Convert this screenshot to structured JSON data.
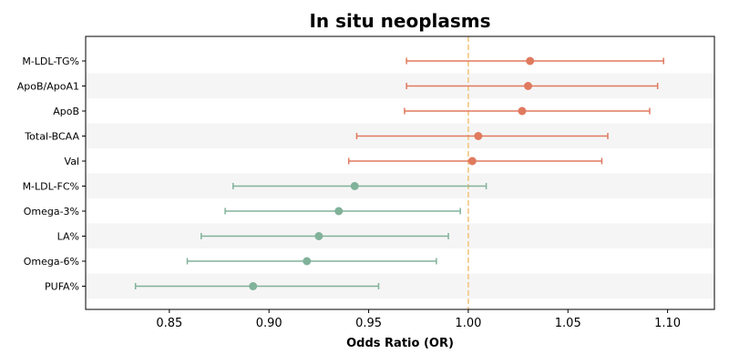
{
  "chart_data": {
    "type": "forest",
    "title": "In situ neoplasms",
    "xlabel": "Odds Ratio (OR)",
    "xlim": [
      0.808,
      1.1235
    ],
    "xticks": [
      0.85,
      0.9,
      0.95,
      1.0,
      1.05,
      1.1
    ],
    "xtick_labels": [
      "0.85",
      "0.90",
      "0.95",
      "1.00",
      "1.05",
      "1.10"
    ],
    "reference_line": 1.0,
    "reference_line_color": "#F2C278",
    "positive_color": "#E07A5F",
    "negative_color": "#81B29A",
    "band_color": "#F5F5F5",
    "rows": [
      {
        "label": "M-LDL-TG%",
        "or": 1.031,
        "lower": 0.969,
        "upper": 1.098
      },
      {
        "label": "ApoB/ApoA1",
        "or": 1.03,
        "lower": 0.969,
        "upper": 1.095
      },
      {
        "label": "ApoB",
        "or": 1.027,
        "lower": 0.968,
        "upper": 1.091
      },
      {
        "label": "Total-BCAA",
        "or": 1.005,
        "lower": 0.944,
        "upper": 1.07
      },
      {
        "label": "Val",
        "or": 1.002,
        "lower": 0.94,
        "upper": 1.067
      },
      {
        "label": "M-LDL-FC%",
        "or": 0.943,
        "lower": 0.882,
        "upper": 1.009
      },
      {
        "label": "Omega-3%",
        "or": 0.935,
        "lower": 0.878,
        "upper": 0.996
      },
      {
        "label": "LA%",
        "or": 0.925,
        "lower": 0.866,
        "upper": 0.99
      },
      {
        "label": "Omega-6%",
        "or": 0.919,
        "lower": 0.859,
        "upper": 0.984
      },
      {
        "label": "PUFA%",
        "or": 0.892,
        "lower": 0.833,
        "upper": 0.955
      }
    ]
  }
}
